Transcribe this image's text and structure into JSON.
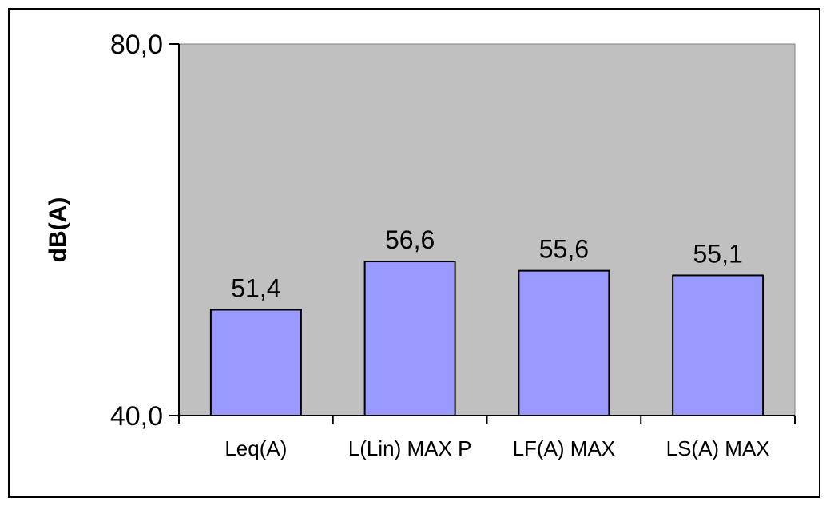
{
  "chart_data": {
    "type": "bar",
    "title": "",
    "xlabel": "",
    "ylabel": "dB(A)",
    "categories": [
      "Leq(A)",
      "L(Lin) MAX P",
      "LF(A) MAX",
      "LS(A) MAX"
    ],
    "values": [
      51.4,
      56.6,
      55.6,
      55.1
    ],
    "value_labels": [
      "51,4",
      "56,6",
      "55,6",
      "55,1"
    ],
    "ylim": [
      40,
      80
    ],
    "y_tick_labels": [
      "80,0",
      "40,0"
    ],
    "y_ticks": [
      80,
      40
    ],
    "grid": false,
    "legend": "none",
    "colors": {
      "bar_fill": "#9999ff",
      "bar_stroke": "#000000",
      "plot_background": "#c0c0c0"
    }
  }
}
